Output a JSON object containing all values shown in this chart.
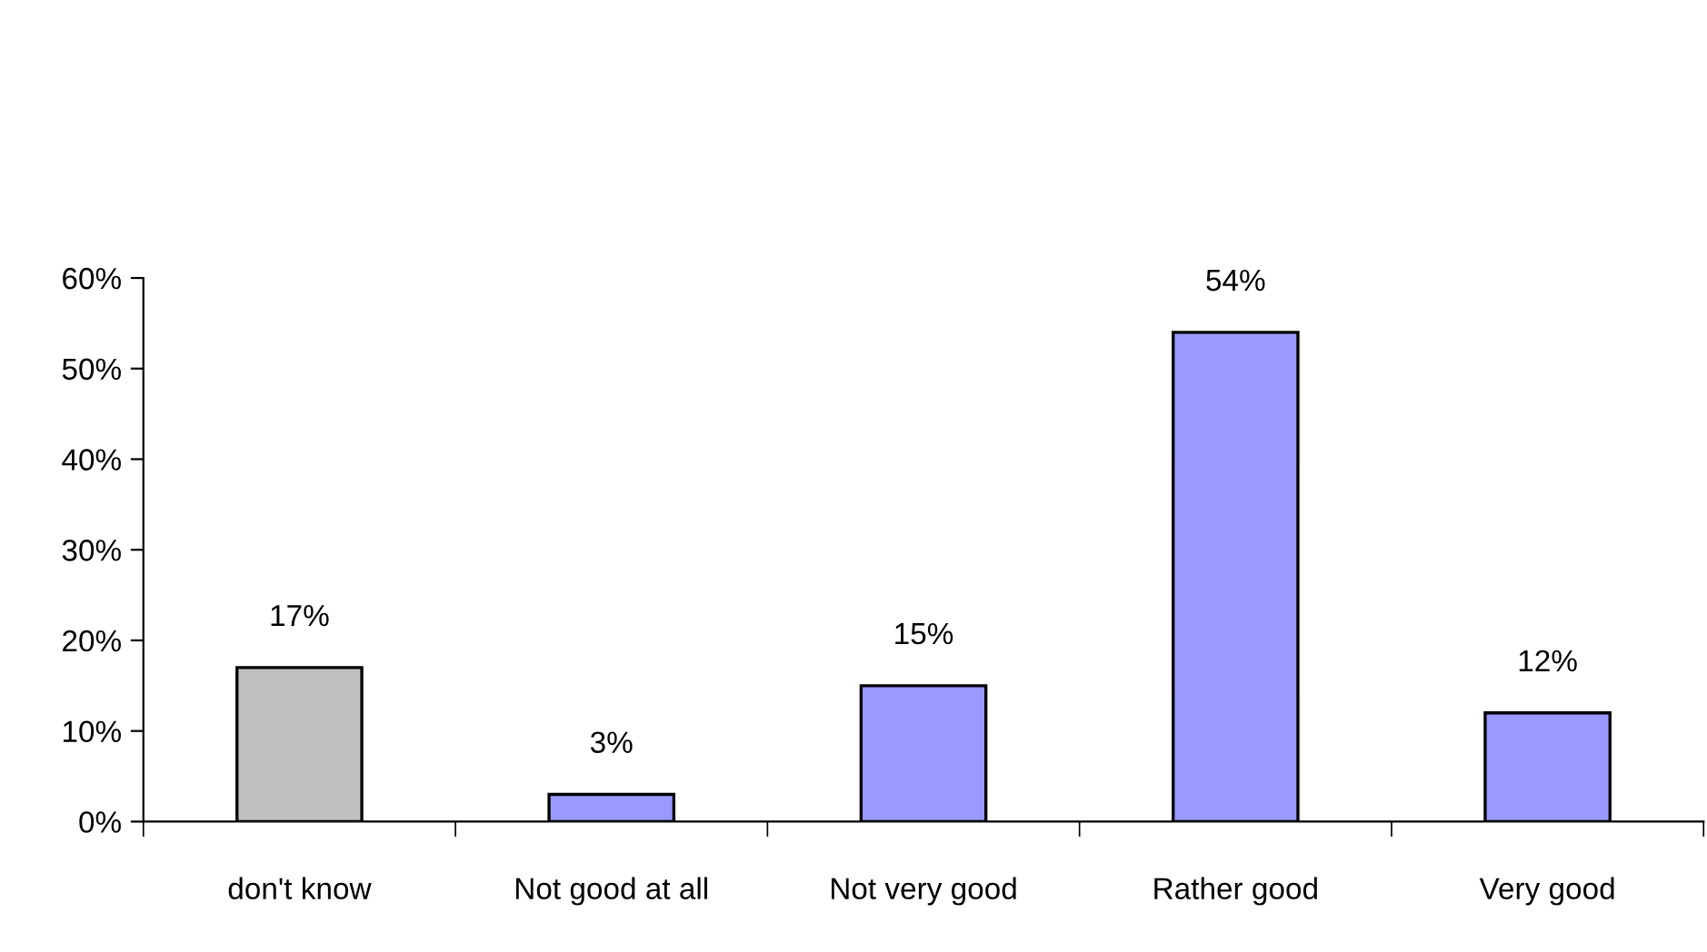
{
  "chart_data": {
    "type": "bar",
    "categories": [
      "don't know",
      "Not good at all",
      "Not very good",
      "Rather good",
      "Very good"
    ],
    "values": [
      17,
      3,
      15,
      54,
      12
    ],
    "colors": [
      "#c0c0c0",
      "#9999ff",
      "#9999ff",
      "#9999ff",
      "#9999ff"
    ],
    "value_labels": [
      "17%",
      "3%",
      "15%",
      "54%",
      "12%"
    ],
    "ylim": [
      0,
      60
    ],
    "yticks": [
      {
        "value": 0,
        "label": "0%"
      },
      {
        "value": 10,
        "label": "10%"
      },
      {
        "value": 20,
        "label": "20%"
      },
      {
        "value": 30,
        "label": "30%"
      },
      {
        "value": 40,
        "label": "40%"
      },
      {
        "value": 50,
        "label": "50%"
      },
      {
        "value": 60,
        "label": "60%"
      }
    ],
    "grid": false
  }
}
